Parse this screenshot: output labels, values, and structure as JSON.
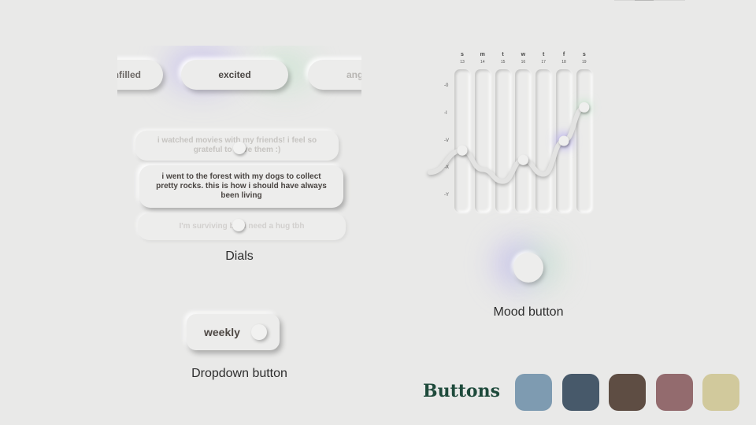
{
  "dials": {
    "pills": [
      "unfilled",
      "excited",
      "angry"
    ],
    "entries": [
      "i watched movies with my friends! i feel so grateful to have them :)",
      "i went to the forest with my dogs to collect pretty rocks. this is how i should have always been living",
      "I'm surviving but i need a hug tbh"
    ],
    "caption": "Dials"
  },
  "chart": {
    "days": [
      {
        "day": "s",
        "date": "13"
      },
      {
        "day": "m",
        "date": "14"
      },
      {
        "day": "t",
        "date": "15"
      },
      {
        "day": "w",
        "date": "16"
      },
      {
        "day": "t",
        "date": "17"
      },
      {
        "day": "f",
        "date": "18"
      },
      {
        "day": "s",
        "date": "19"
      }
    ],
    "y_ticks": [
      "-0",
      "-I",
      "-V",
      "-X",
      "-Y"
    ]
  },
  "chart_data": {
    "type": "line",
    "categories": [
      "s 13",
      "m 14",
      "t 15",
      "w 16",
      "t 17",
      "f 18",
      "s 19"
    ],
    "series": [
      {
        "values": [
          2.2,
          1.4,
          0.9,
          1.8,
          1.2,
          2.6,
          4.0
        ]
      }
    ],
    "ylim": [
      0,
      5
    ],
    "grid": false
  },
  "mood": {
    "caption": "Mood button"
  },
  "dropdown": {
    "label": "weekly",
    "caption": "Dropdown button"
  },
  "buttons": {
    "title": "Buttons",
    "swatches": [
      "#7e9bb1",
      "#47596a",
      "#5e4d43",
      "#936b6e",
      "#d1c99c"
    ]
  },
  "colors": {
    "background": "#e9e9e8",
    "title_green": "#1e4a3b",
    "glow_purple": "#b9b1ee",
    "glow_green": "#bfe2c8"
  }
}
